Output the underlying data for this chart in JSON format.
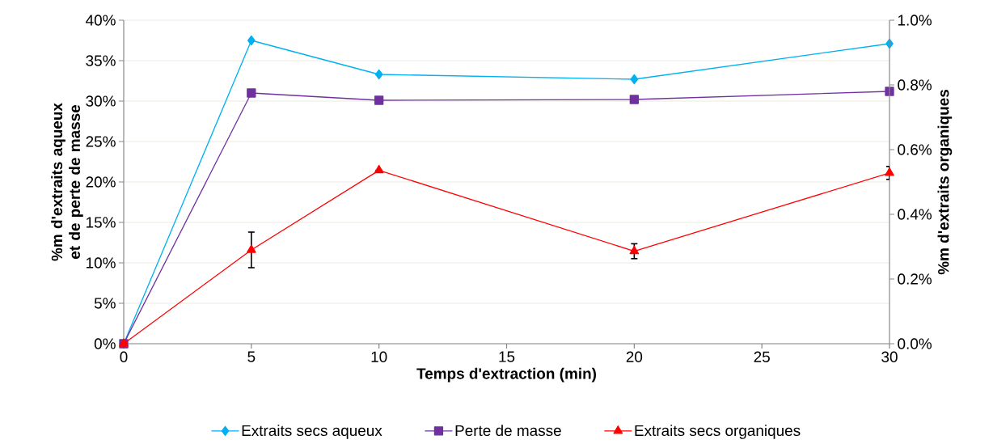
{
  "chart_data": {
    "type": "line",
    "xlabel": "Temps d'extraction (min)",
    "ylabel": "%m d'extraits aqueux et de perte de masse",
    "y2label": "%m d'extraits organiques",
    "x": [
      0,
      5,
      10,
      20,
      30
    ],
    "series": [
      {
        "name": "Extraits secs aqueux",
        "color": "#00b0f0",
        "marker": "diamond",
        "values": [
          0,
          37.5,
          33.3,
          32.7,
          37.1
        ],
        "errors": [
          null,
          null,
          null,
          null,
          null
        ]
      },
      {
        "name": "Perte de masse",
        "color": "#7030a0",
        "marker": "square",
        "values": [
          0,
          31.0,
          30.1,
          30.2,
          31.2
        ]
      },
      {
        "name": "Extraits secs organiques",
        "color": "#ff0000",
        "marker": "triangle",
        "axis": "y2",
        "values": [
          0,
          0.29,
          0.536,
          0.286,
          0.528
        ],
        "errors": [
          null,
          0.055,
          null,
          0.023,
          0.02
        ]
      }
    ],
    "xlim": [
      0,
      30
    ],
    "xticks": [
      0,
      5,
      10,
      15,
      20,
      25,
      30
    ],
    "ylim": [
      0,
      40
    ],
    "yticks": [
      {
        "value": 0,
        "label": "0%"
      },
      {
        "value": 5,
        "label": "5%"
      },
      {
        "value": 10,
        "label": "10%"
      },
      {
        "value": 15,
        "label": "15%"
      },
      {
        "value": 20,
        "label": "20%"
      },
      {
        "value": 25,
        "label": "25%"
      },
      {
        "value": 30,
        "label": "30%"
      },
      {
        "value": 35,
        "label": "35%"
      },
      {
        "value": 40,
        "label": "40%"
      }
    ],
    "y2lim": [
      0,
      1.0
    ],
    "y2ticks": [
      {
        "value": 0,
        "label": "0.0%"
      },
      {
        "value": 0.2,
        "label": "0.2%"
      },
      {
        "value": 0.4,
        "label": "0.4%"
      },
      {
        "value": 0.6,
        "label": "0.6%"
      },
      {
        "value": 0.8,
        "label": "0.8%"
      },
      {
        "value": 1.0,
        "label": "1.0%"
      }
    ],
    "grid": "y",
    "legend": "bottom",
    "line_style": "solid"
  }
}
